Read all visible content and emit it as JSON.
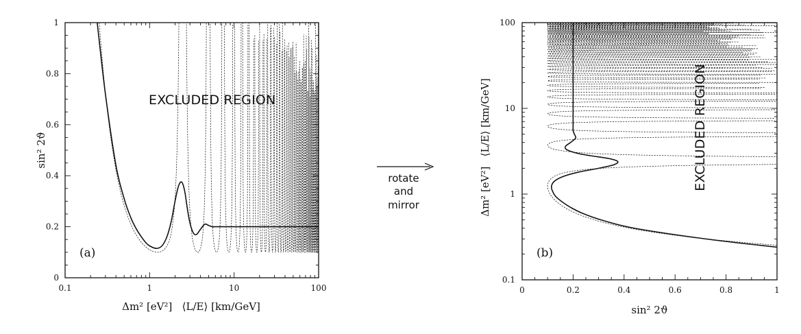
{
  "colors": {
    "ink": "#111111",
    "background": "#ffffff"
  },
  "arrow_label": [
    "rotate",
    "and",
    "mirror"
  ],
  "chart_data": [
    {
      "type": "line",
      "panel_label": "(a)",
      "annotation": "EXCLUDED REGION",
      "xlabel": "Δm² [eV²]   ⟨L/E⟩ [km/GeV]",
      "ylabel": "sin² 2ϑ",
      "xscale": "log",
      "xlim": [
        0.1,
        100
      ],
      "ylim": [
        0,
        1
      ],
      "xticks": [
        "0.1",
        "1",
        "10",
        "100"
      ],
      "yticks": [
        "0",
        "0.2",
        "0.4",
        "0.6",
        "0.8",
        "1"
      ],
      "series": [
        {
          "style": "solid",
          "x": [
            0.24,
            0.3,
            0.4,
            0.5,
            0.6,
            0.7,
            0.8,
            0.9,
            1.0,
            1.2,
            1.4,
            1.6,
            1.8,
            2.0,
            2.2,
            2.4,
            2.6,
            2.8,
            3.0,
            3.3,
            3.6,
            4.0,
            4.5,
            5.0,
            5.5,
            6.0,
            8.0,
            10,
            20,
            50,
            100
          ],
          "y": [
            1.0,
            0.72,
            0.44,
            0.31,
            0.235,
            0.19,
            0.16,
            0.138,
            0.125,
            0.115,
            0.125,
            0.16,
            0.22,
            0.3,
            0.36,
            0.375,
            0.34,
            0.27,
            0.215,
            0.175,
            0.17,
            0.19,
            0.21,
            0.205,
            0.2,
            0.2,
            0.2,
            0.2,
            0.2,
            0.2,
            0.2
          ]
        },
        {
          "style": "dashed",
          "description_x": "fringes of the oscillating exclusion curve, sin²2ϑ_min = 0.1 / sin²(1.27 Δm² L/E) with ⟨L/E⟩ = 1 km/GeV",
          "x_start": 0.24,
          "x_end": 100,
          "floor": 0.1
        }
      ]
    },
    {
      "type": "line",
      "panel_label": "(b)",
      "annotation": "EXCLUDED REGION",
      "xlabel": "sin² 2ϑ",
      "ylabel": "Δm² [eV²]   ⟨L/E⟩ [km/GeV]",
      "yscale": "log",
      "xlim": [
        0,
        1
      ],
      "ylim": [
        0.1,
        100
      ],
      "xticks": [
        "0",
        "0.2",
        "0.4",
        "0.6",
        "0.8",
        "1"
      ],
      "yticks": [
        "0.1",
        "1",
        "10",
        "100"
      ]
    }
  ]
}
